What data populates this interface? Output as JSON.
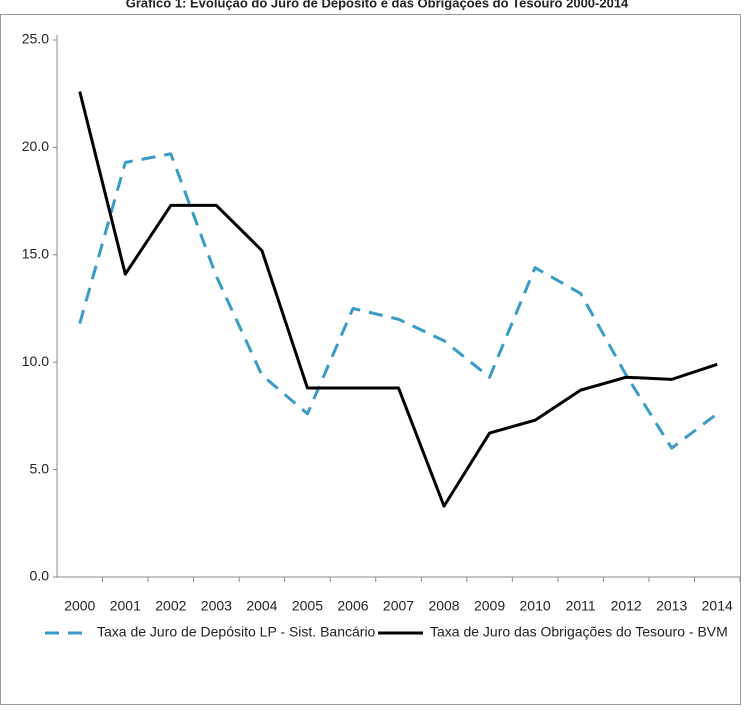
{
  "chart_data": {
    "type": "line",
    "title": "Gráfico 1: Evolução do Juro de Depósito e das Obrigações do Tesouro 2000-2014",
    "categories": [
      "2000",
      "2001",
      "2002",
      "2003",
      "2004",
      "2005",
      "2006",
      "2007",
      "2008",
      "2009",
      "2010",
      "2011",
      "2012",
      "2013",
      "2014"
    ],
    "series": [
      {
        "name": "Taxa de Juro de Depósito LP - Sist. Bancário",
        "color": "#3a9cc4",
        "dashed": true,
        "values": [
          11.8,
          19.3,
          19.7,
          14.0,
          9.4,
          7.6,
          12.5,
          12.0,
          11.0,
          9.3,
          14.4,
          13.2,
          9.4,
          6.0,
          7.6
        ]
      },
      {
        "name": "Taxa de Juro das Obrigações do Tesouro - BVM",
        "color": "#000000",
        "dashed": false,
        "values": [
          22.6,
          14.1,
          17.3,
          17.3,
          15.2,
          8.8,
          8.8,
          8.8,
          3.3,
          6.7,
          7.3,
          8.7,
          9.3,
          9.2,
          9.9
        ]
      }
    ],
    "ylim": [
      0,
      25
    ],
    "yticks": [
      {
        "value": 0,
        "label": "0.0"
      },
      {
        "value": 5,
        "label": "5.0"
      },
      {
        "value": 10,
        "label": "10.0"
      },
      {
        "value": 15,
        "label": "15.0"
      },
      {
        "value": 20,
        "label": "20.0"
      },
      {
        "value": 25,
        "label": "25.0"
      }
    ],
    "grid": false
  }
}
